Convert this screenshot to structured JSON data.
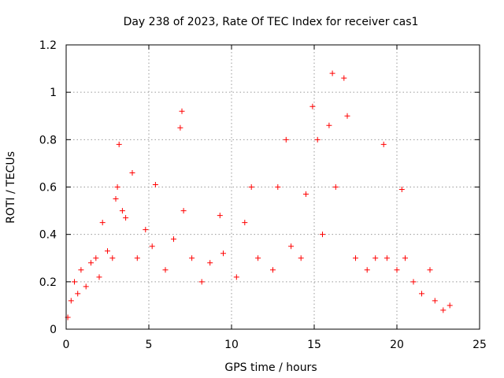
{
  "chart_data": {
    "type": "scatter",
    "title": "Day 238 of 2023, Rate Of TEC Index for receiver cas1",
    "xlabel": "GPS time / hours",
    "ylabel": "ROTI / TECUs",
    "xlim": [
      0,
      25
    ],
    "ylim": [
      0,
      1.2
    ],
    "x_ticks": [
      "0",
      "5",
      "10",
      "15",
      "20",
      "25"
    ],
    "y_ticks": [
      "0",
      "0.2",
      "0.4",
      "0.6",
      "0.8",
      "1",
      "1.2"
    ],
    "grid": true,
    "marker": "plus",
    "colors": {
      "series": "#ff0000",
      "grid": "#999999",
      "axis": "#000000"
    },
    "series": [
      {
        "points": [
          [
            0.1,
            0.05
          ],
          [
            0.3,
            0.12
          ],
          [
            0.5,
            0.2
          ],
          [
            0.7,
            0.15
          ],
          [
            0.9,
            0.25
          ],
          [
            1.2,
            0.18
          ],
          [
            1.5,
            0.28
          ],
          [
            1.8,
            0.3
          ],
          [
            2.0,
            0.22
          ],
          [
            2.2,
            0.45
          ],
          [
            2.5,
            0.33
          ],
          [
            2.8,
            0.3
          ],
          [
            3.0,
            0.55
          ],
          [
            3.1,
            0.6
          ],
          [
            3.2,
            0.78
          ],
          [
            3.4,
            0.5
          ],
          [
            3.6,
            0.47
          ],
          [
            4.0,
            0.66
          ],
          [
            4.3,
            0.3
          ],
          [
            4.8,
            0.42
          ],
          [
            5.2,
            0.35
          ],
          [
            5.4,
            0.61
          ],
          [
            6.0,
            0.25
          ],
          [
            6.5,
            0.38
          ],
          [
            6.9,
            0.85
          ],
          [
            7.0,
            0.92
          ],
          [
            7.1,
            0.5
          ],
          [
            7.6,
            0.3
          ],
          [
            8.2,
            0.2
          ],
          [
            8.7,
            0.28
          ],
          [
            9.3,
            0.48
          ],
          [
            9.5,
            0.32
          ],
          [
            10.3,
            0.22
          ],
          [
            10.8,
            0.45
          ],
          [
            11.2,
            0.6
          ],
          [
            11.6,
            0.3
          ],
          [
            12.5,
            0.25
          ],
          [
            12.8,
            0.6
          ],
          [
            13.3,
            0.8
          ],
          [
            13.6,
            0.35
          ],
          [
            14.2,
            0.3
          ],
          [
            14.5,
            0.57
          ],
          [
            14.9,
            0.94
          ],
          [
            15.2,
            0.8
          ],
          [
            15.5,
            0.4
          ],
          [
            15.9,
            0.86
          ],
          [
            16.1,
            1.08
          ],
          [
            16.3,
            0.6
          ],
          [
            16.8,
            1.06
          ],
          [
            17.0,
            0.9
          ],
          [
            17.5,
            0.3
          ],
          [
            18.2,
            0.25
          ],
          [
            18.7,
            0.3
          ],
          [
            19.2,
            0.78
          ],
          [
            19.4,
            0.3
          ],
          [
            20.0,
            0.25
          ],
          [
            20.3,
            0.59
          ],
          [
            20.5,
            0.3
          ],
          [
            21.0,
            0.2
          ],
          [
            21.5,
            0.15
          ],
          [
            22.0,
            0.25
          ],
          [
            22.3,
            0.12
          ],
          [
            22.8,
            0.08
          ],
          [
            23.2,
            0.1
          ]
        ]
      }
    ]
  }
}
